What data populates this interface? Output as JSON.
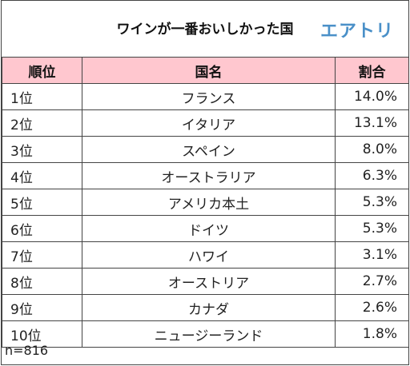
{
  "header": {
    "title": "ワインが一番おいしかった国",
    "logo_text": "エアトリ"
  },
  "table": {
    "headers": [
      "順位",
      "国名",
      "割合"
    ]
  },
  "chart_data": {
    "type": "table",
    "title": "ワインが一番おいしかった国",
    "columns": [
      "順位",
      "国名",
      "割合"
    ],
    "rows": [
      {
        "rank": "1位",
        "country": "フランス",
        "share": "14.0%"
      },
      {
        "rank": "2位",
        "country": "イタリア",
        "share": "13.1%"
      },
      {
        "rank": "3位",
        "country": "スペイン",
        "share": "8.0%"
      },
      {
        "rank": "4位",
        "country": "オーストラリア",
        "share": "6.3%"
      },
      {
        "rank": "5位",
        "country": "アメリカ本土",
        "share": "5.3%"
      },
      {
        "rank": "6位",
        "country": "ドイツ",
        "share": "5.3%"
      },
      {
        "rank": "7位",
        "country": "ハワイ",
        "share": "3.1%"
      },
      {
        "rank": "8位",
        "country": "オーストリア",
        "share": "2.7%"
      },
      {
        "rank": "9位",
        "country": "カナダ",
        "share": "2.6%"
      },
      {
        "rank": "10位",
        "country": "ニュージーランド",
        "share": "1.8%"
      }
    ]
  },
  "footer": {
    "sample_size": "n=816"
  },
  "colors": {
    "header_bg": "#ffc7cf",
    "logo": "#4a90c8",
    "border": "#444444"
  }
}
